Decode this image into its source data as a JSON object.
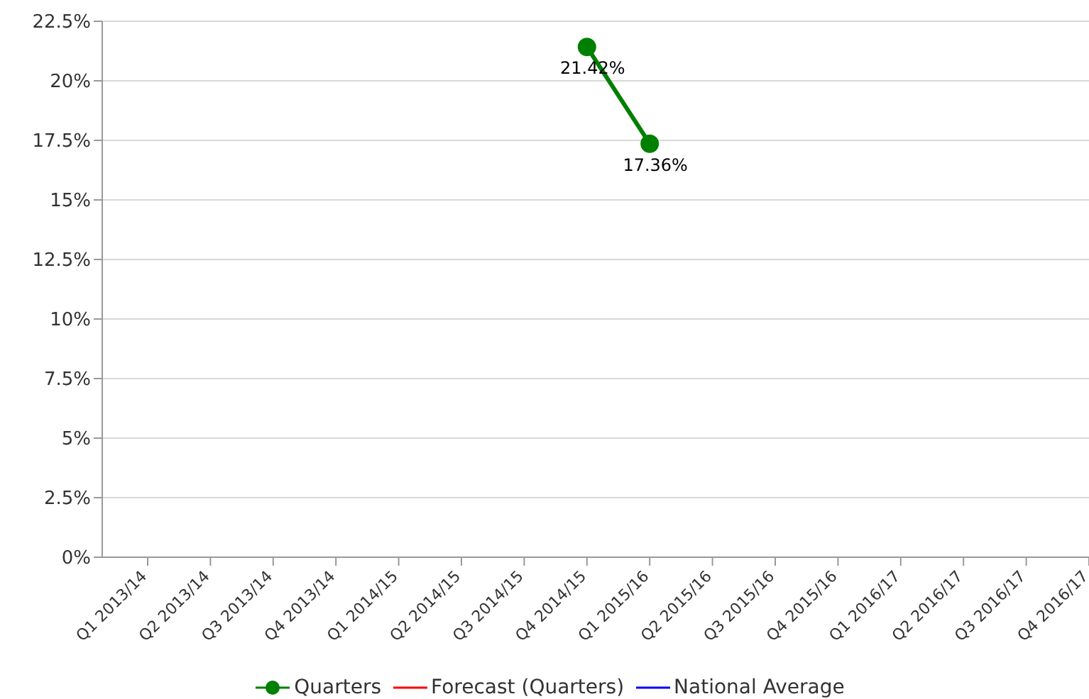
{
  "chart_data": {
    "type": "line",
    "categories": [
      "Q1 2013/14",
      "Q2 2013/14",
      "Q3 2013/14",
      "Q4 2013/14",
      "Q1 2014/15",
      "Q2 2014/15",
      "Q3 2014/15",
      "Q4 2014/15",
      "Q1 2015/16",
      "Q2 2015/16",
      "Q3 2015/16",
      "Q4 2015/16",
      "Q1 2016/17",
      "Q2 2016/17",
      "Q3 2016/17",
      "Q4 2016/17"
    ],
    "series": [
      {
        "name": "Quarters",
        "color": "#008000",
        "marker": "circle",
        "values": [
          null,
          null,
          null,
          null,
          null,
          null,
          null,
          21.42,
          17.36,
          null,
          null,
          null,
          null,
          null,
          null,
          null
        ],
        "value_labels": [
          null,
          null,
          null,
          null,
          null,
          null,
          null,
          "21.42%",
          "17.36%",
          null,
          null,
          null,
          null,
          null,
          null,
          null
        ]
      },
      {
        "name": "Forecast (Quarters)",
        "color": "#ff0000",
        "marker": "none",
        "values": [
          null,
          null,
          null,
          null,
          null,
          null,
          null,
          null,
          null,
          null,
          null,
          null,
          null,
          null,
          null,
          null
        ]
      },
      {
        "name": "National Average",
        "color": "#0000ff",
        "marker": "none",
        "values": [
          null,
          null,
          null,
          null,
          null,
          null,
          null,
          null,
          null,
          null,
          null,
          null,
          null,
          null,
          null,
          null
        ]
      }
    ],
    "ylim": [
      0,
      22.5
    ],
    "yticks": [
      {
        "value": 0,
        "label": "0%"
      },
      {
        "value": 2.5,
        "label": "2.5%"
      },
      {
        "value": 5,
        "label": "5%"
      },
      {
        "value": 7.5,
        "label": "7.5%"
      },
      {
        "value": 10,
        "label": "10%"
      },
      {
        "value": 12.5,
        "label": "12.5%"
      },
      {
        "value": 15,
        "label": "15%"
      },
      {
        "value": 17.5,
        "label": "17.5%"
      },
      {
        "value": 20,
        "label": "20%"
      },
      {
        "value": 22.5,
        "label": "22.5%"
      }
    ],
    "grid": "y",
    "legend": "bottom"
  }
}
